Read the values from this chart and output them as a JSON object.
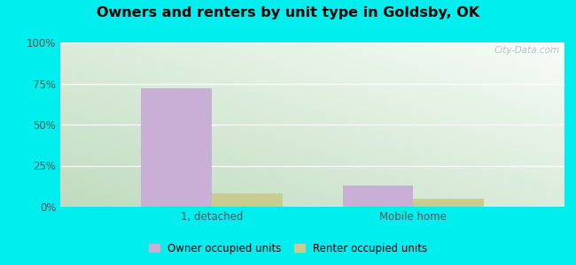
{
  "title": "Owners and renters by unit type in Goldsby, OK",
  "categories": [
    "1, detached",
    "Mobile home"
  ],
  "owner_values": [
    72,
    13
  ],
  "renter_values": [
    8,
    5
  ],
  "owner_color": "#c9aed6",
  "renter_color": "#c8cc8e",
  "ylim": [
    0,
    100
  ],
  "yticks": [
    0,
    25,
    50,
    75,
    100
  ],
  "ytick_labels": [
    "0%",
    "25%",
    "50%",
    "75%",
    "100%"
  ],
  "legend_owner": "Owner occupied units",
  "legend_renter": "Renter occupied units",
  "outer_bg": "#00eeee",
  "bar_width": 0.28,
  "watermark": "City-Data.com",
  "bg_colors": [
    "#cce8cc",
    "#e8f4e8",
    "#f4faf0",
    "#ffffff"
  ],
  "grid_color": "#ffffff",
  "tick_color": "#555555"
}
